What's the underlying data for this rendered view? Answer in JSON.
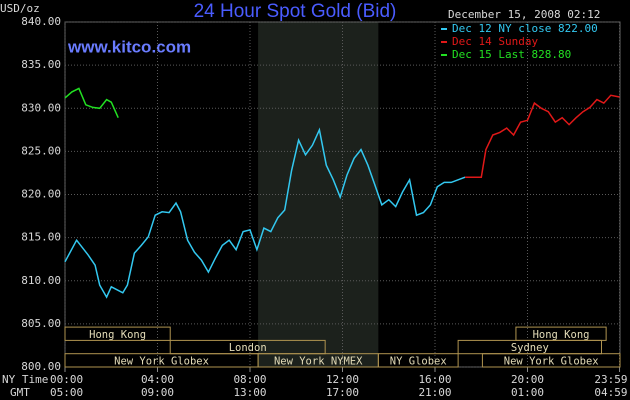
{
  "chart_data": {
    "type": "line",
    "title": "24 Hour Spot Gold (Bid)",
    "subtitle": "December 15, 2008 02:12",
    "y_label": "USD/oz",
    "annotation": "www.kitco.com",
    "x_row_labels": [
      "NY Time",
      "GMT"
    ],
    "xlim": [
      0,
      24
    ],
    "xticks": [
      {
        "value": 0,
        "label": "00:00"
      },
      {
        "value": 4,
        "label": "04:00"
      },
      {
        "value": 8,
        "label": "08:00"
      },
      {
        "value": 12,
        "label": "12:00"
      },
      {
        "value": 16,
        "label": "16:00"
      },
      {
        "value": 20,
        "label": "20:00"
      },
      {
        "value": 23.98,
        "label": "23:59"
      }
    ],
    "xticks_gmt": [
      {
        "value": 0,
        "label": "05:00"
      },
      {
        "value": 4,
        "label": "09:00"
      },
      {
        "value": 8,
        "label": "13:00"
      },
      {
        "value": 12,
        "label": "17:00"
      },
      {
        "value": 16,
        "label": "21:00"
      },
      {
        "value": 20,
        "label": "01:00"
      },
      {
        "value": 23.98,
        "label": "04:59"
      }
    ],
    "ylim": [
      800,
      840
    ],
    "yticks": [
      {
        "value": 800,
        "label": "800.00"
      },
      {
        "value": 805,
        "label": "805.00"
      },
      {
        "value": 810,
        "label": "810.00"
      },
      {
        "value": 815,
        "label": "815.00"
      },
      {
        "value": 820,
        "label": "820.00"
      },
      {
        "value": 825,
        "label": "825.00"
      },
      {
        "value": 830,
        "label": "830.00"
      },
      {
        "value": 835,
        "label": "835.00"
      },
      {
        "value": 840,
        "label": "840.00"
      }
    ],
    "grid": true,
    "shaded_session": [
      8.35,
      13.55
    ],
    "session_rows": [
      [
        {
          "name": "Hong Kong",
          "start": 0,
          "end": 4.55
        },
        {
          "name": "Hong Kong",
          "start": 19.5,
          "end": 23.4
        }
      ],
      [
        {
          "name": "London",
          "start": 4.55,
          "end": 11.25
        },
        {
          "name": "Sydney",
          "start": 17,
          "end": 23.2
        }
      ],
      [
        {
          "name": "New York Globex",
          "start": 0,
          "end": 8.35
        },
        {
          "name": "New York NYMEX",
          "start": 8.35,
          "end": 13.55
        },
        {
          "name": "NY Globex",
          "start": 13.55,
          "end": 17
        },
        {
          "name": "New York Globex",
          "start": 18.05,
          "end": 24
        }
      ]
    ],
    "series": [
      {
        "name": "Dec 12 NY close 822.00",
        "color": "#33c8f0",
        "x": [
          0,
          0.5,
          1.0,
          1.3,
          1.5,
          1.8,
          2.0,
          2.5,
          2.7,
          3.0,
          3.3,
          3.6,
          3.9,
          4.2,
          4.5,
          4.8,
          5.0,
          5.3,
          5.6,
          5.9,
          6.2,
          6.5,
          6.8,
          7.1,
          7.4,
          7.7,
          8.0,
          8.3,
          8.6,
          8.9,
          9.2,
          9.5,
          9.8,
          10.1,
          10.4,
          10.7,
          11.0,
          11.3,
          11.6,
          11.9,
          12.2,
          12.5,
          12.8,
          13.1,
          13.4,
          13.7,
          14.0,
          14.3,
          14.6,
          14.9,
          15.2,
          15.5,
          15.8,
          16.1,
          16.4,
          16.7,
          17.0,
          17.3
        ],
        "values": [
          812.2,
          814.7,
          813,
          811.8,
          809.5,
          808.1,
          809.3,
          808.6,
          809.5,
          813.2,
          814.1,
          815.1,
          817.6,
          818,
          817.9,
          819,
          818,
          814.7,
          813.3,
          812.4,
          811,
          812.6,
          814.1,
          814.7,
          813.6,
          815.7,
          815.9,
          813.6,
          816.1,
          815.7,
          817.3,
          818.2,
          822.8,
          826.3,
          824.6,
          825.7,
          827.5,
          823.4,
          821.7,
          819.7,
          822.3,
          824.2,
          825.2,
          823.4,
          821.1,
          818.8,
          819.4,
          818.6,
          820.3,
          821.7,
          817.6,
          817.9,
          818.8,
          820.9,
          821.4,
          821.4,
          821.7,
          822
        ]
      },
      {
        "name": "Dec 14 Sunday",
        "color": "#e01818",
        "x": [
          17.3,
          18.0,
          18.2,
          18.5,
          18.8,
          19.1,
          19.4,
          19.7,
          20.0,
          20.3,
          20.6,
          20.9,
          21.2,
          21.5,
          21.8,
          22.1,
          22.4,
          22.7,
          23.0,
          23.3,
          23.6,
          23.98
        ],
        "values": [
          822,
          822,
          825.2,
          826.9,
          827.2,
          827.7,
          826.9,
          828.4,
          828.6,
          830.6,
          830,
          829.6,
          828.4,
          828.9,
          828.1,
          828.9,
          829.6,
          830.1,
          831,
          830.6,
          831.5,
          831.3
        ]
      },
      {
        "name": "Dec 15 Last 828.80",
        "color": "#22e022",
        "x": [
          0,
          0.3,
          0.6,
          0.9,
          1.2,
          1.5,
          1.8,
          2.0,
          2.3
        ],
        "values": [
          831.2,
          831.9,
          832.3,
          830.4,
          830.1,
          830,
          831,
          830.7,
          828.9
        ]
      }
    ]
  }
}
